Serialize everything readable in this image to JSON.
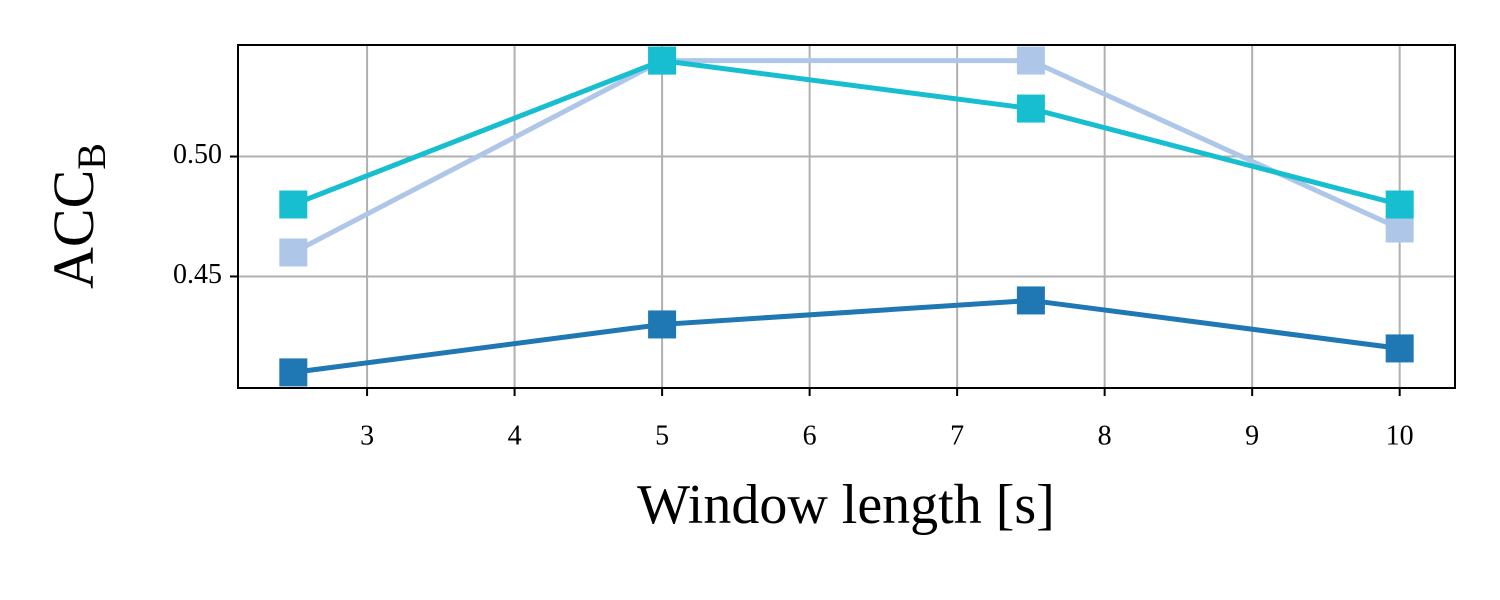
{
  "chart_data": {
    "type": "line",
    "xlabel": "Window length [s]",
    "ylabel": "ACC",
    "ylabel_subscript": "B",
    "x": [
      2.5,
      5,
      7.5,
      10
    ],
    "series": [
      {
        "color": "#1f77b4",
        "values": [
          0.41,
          0.43,
          0.44,
          0.42
        ]
      },
      {
        "color": "#aec7e8",
        "values": [
          0.46,
          0.54,
          0.54,
          0.47
        ]
      },
      {
        "color": "#17becf",
        "values": [
          0.48,
          0.54,
          0.52,
          0.48
        ]
      }
    ],
    "xlim": [
      2.125,
      10.375
    ],
    "xticks": [
      3,
      4,
      5,
      6,
      7,
      8,
      9,
      10
    ],
    "ylim": [
      0.4035,
      0.5465
    ],
    "yticks": [
      0.45,
      {
        "value": 0.5,
        "label": "0.50"
      }
    ],
    "grid": true,
    "marker": "square"
  }
}
